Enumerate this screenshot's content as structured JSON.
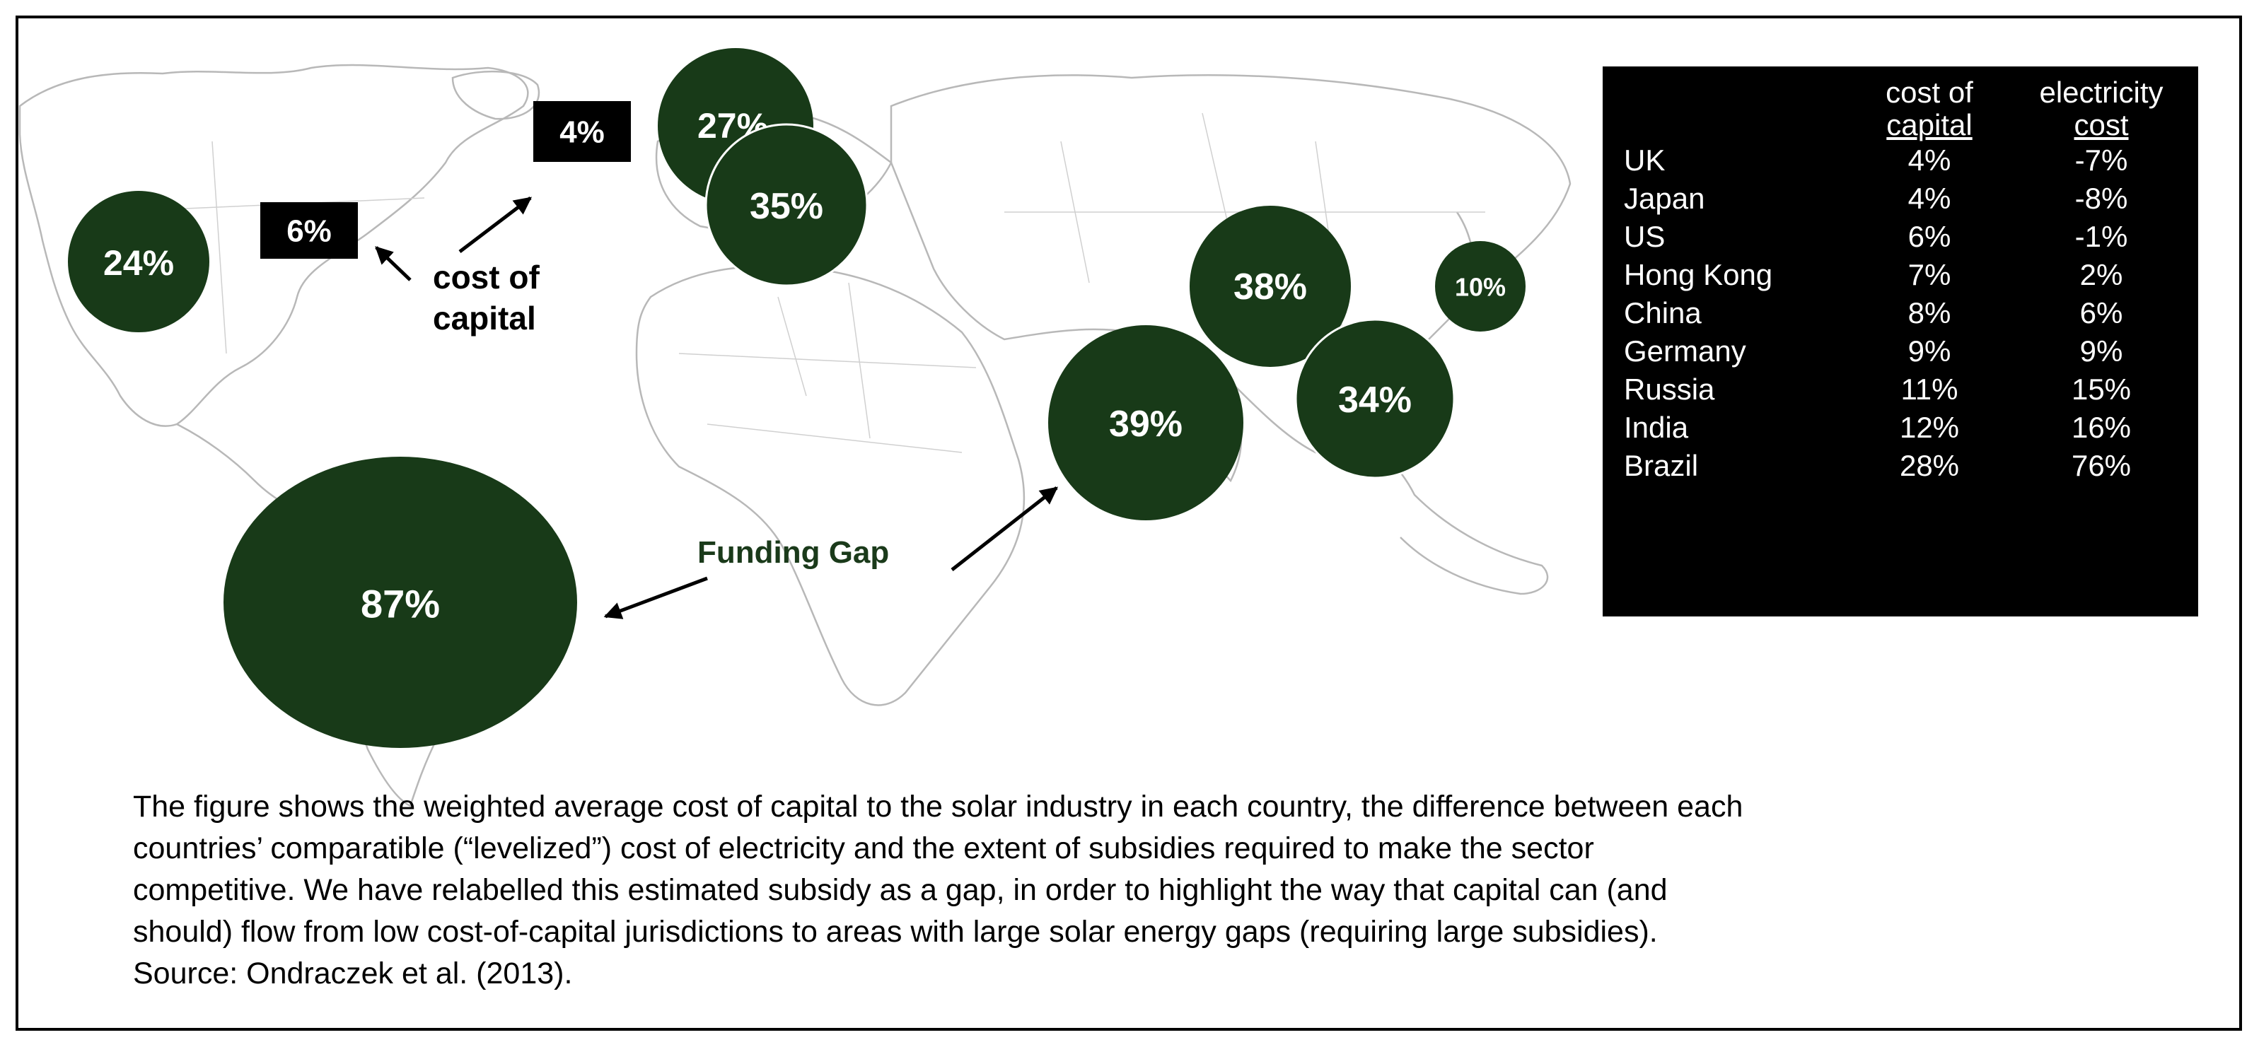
{
  "map": {
    "bubbles": [
      {
        "label": "24%",
        "region": "US"
      },
      {
        "label": "27%",
        "region": "UK"
      },
      {
        "label": "35%",
        "region": "Germany"
      },
      {
        "label": "38%",
        "region": "India"
      },
      {
        "label": "10%",
        "region": "Japan"
      },
      {
        "label": "34%",
        "region": "China"
      },
      {
        "label": "39%",
        "region": "Russia"
      },
      {
        "label": "87%",
        "region": "Brazil"
      }
    ],
    "cost_boxes": [
      "6%",
      "4%"
    ],
    "annotations": {
      "cost_of_capital_line1": "cost of",
      "cost_of_capital_line2": "capital",
      "funding_gap": "Funding Gap"
    },
    "colors": {
      "bubble_fill": "#183a18",
      "funding_gap_text": "#1a3a1a",
      "box_fill": "#000000"
    }
  },
  "table": {
    "header_cost_line1": "cost of",
    "header_cost_line2": "capital",
    "header_elec_line1": "electricity",
    "header_elec_line2": "cost",
    "rows": [
      {
        "country": "UK",
        "cost_of_capital": "4%",
        "electricity_cost": "-7%"
      },
      {
        "country": "Japan",
        "cost_of_capital": "4%",
        "electricity_cost": "-8%"
      },
      {
        "country": "US",
        "cost_of_capital": "6%",
        "electricity_cost": "-1%"
      },
      {
        "country": "Hong Kong",
        "cost_of_capital": "7%",
        "electricity_cost": "2%"
      },
      {
        "country": "China",
        "cost_of_capital": "8%",
        "electricity_cost": "6%"
      },
      {
        "country": "Germany",
        "cost_of_capital": "9%",
        "electricity_cost": "9%"
      },
      {
        "country": "Russia",
        "cost_of_capital": "11%",
        "electricity_cost": "15%"
      },
      {
        "country": "India",
        "cost_of_capital": "12%",
        "electricity_cost": "16%"
      },
      {
        "country": "Brazil",
        "cost_of_capital": "28%",
        "electricity_cost": "76%"
      }
    ]
  },
  "caption": {
    "line1": "The figure shows the weighted average cost of capital to the solar industry in each country, the difference between each",
    "line2": "countries’ comparatible (“levelized”) cost of electricity and the extent of subsidies required to make the sector",
    "line3": "competitive. We have relabelled this estimated subsidy as a gap, in order to highlight the way that capital can (and",
    "line4": "should) flow from low cost-of-capital jurisdictions to areas with large solar energy gaps (requiring large subsidies).",
    "line5": "Source:  Ondraczek et al. (2013)."
  }
}
